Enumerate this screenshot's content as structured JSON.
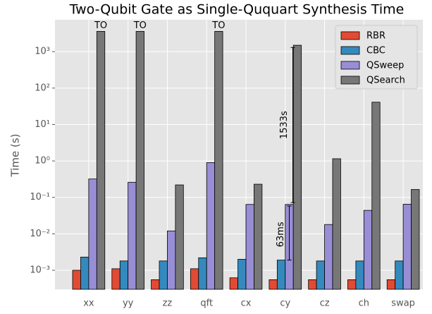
{
  "chart_data": {
    "type": "bar",
    "title": "Two-Qubit Gate as Single-Ququart Synthesis Time",
    "y_label": "Time (s)",
    "yscale": "log",
    "grid": true,
    "legend": "upper right",
    "categories": [
      "xx",
      "yy",
      "zz",
      "qft",
      "cx",
      "cy",
      "cz",
      "ch",
      "swap"
    ],
    "series": [
      {
        "name": "RBR",
        "color": "#E24A33",
        "values": [
          0.001,
          0.0011,
          0.00055,
          0.0011,
          0.00062,
          0.00055,
          0.00055,
          0.00055,
          0.00055
        ]
      },
      {
        "name": "CBC",
        "color": "#348ABD",
        "values": [
          0.0023,
          0.0018,
          0.0018,
          0.0022,
          0.002,
          0.0019,
          0.0018,
          0.0018,
          0.0018
        ]
      },
      {
        "name": "QSweep",
        "color": "#988ED5",
        "values": [
          0.32,
          0.26,
          0.012,
          0.9,
          0.064,
          0.064,
          0.018,
          0.044,
          0.065
        ]
      },
      {
        "name": "QSearch",
        "color": "#777777",
        "values": [
          3600,
          3600,
          0.22,
          3600,
          0.23,
          1500,
          1.15,
          41,
          0.165
        ]
      }
    ],
    "bar_labels": [
      {
        "category": 0,
        "text": "TO"
      },
      {
        "category": 1,
        "text": "TO"
      },
      {
        "category": 3,
        "text": "TO"
      }
    ],
    "annotations": [
      {
        "text": "1533s",
        "category": 5,
        "from": 0.072,
        "to": 1300
      },
      {
        "text": "63ms",
        "category": 5,
        "from": 0.0019,
        "to": 0.058
      }
    ],
    "ylim": [
      0.0003,
      7500
    ],
    "yticks": [
      {
        "value": 0.001,
        "label": "10⁻³"
      },
      {
        "value": 0.01,
        "label": "10⁻²"
      },
      {
        "value": 0.1,
        "label": "10⁻¹"
      },
      {
        "value": 1,
        "label": "10⁰"
      },
      {
        "value": 10,
        "label": "10¹"
      },
      {
        "value": 100,
        "label": "10²"
      },
      {
        "value": 1000,
        "label": "10³"
      }
    ]
  }
}
